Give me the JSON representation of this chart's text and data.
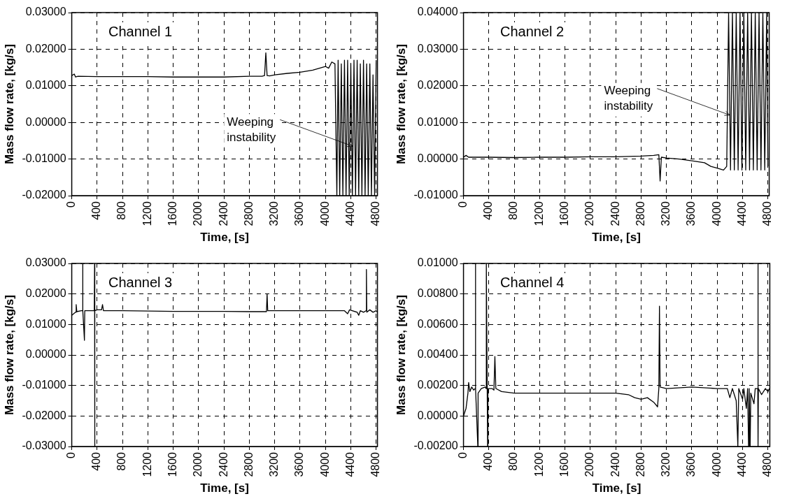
{
  "chart_data": [
    {
      "type": "line",
      "xlabel": "Time, [s]",
      "ylabel": "Mass flow rate, [kg/s]",
      "color": "#000000",
      "grid": true,
      "marker": "none",
      "line_style": "solid",
      "annotations": [
        "Channel 1",
        {
          "text": "Weeping instability",
          "x": 4430,
          "y": -0.0065
        }
      ],
      "xlim": [
        0,
        4820
      ],
      "xticks": [
        0,
        400,
        800,
        1200,
        1600,
        2000,
        2400,
        2800,
        3200,
        3600,
        4000,
        4400,
        4800
      ],
      "ylim": [
        -0.02,
        0.03
      ],
      "yticks": [
        {
          "value": -0.02,
          "label": "-0.02000"
        },
        {
          "value": -0.01,
          "label": "-0.01000"
        },
        {
          "value": 0,
          "label": "0.00000"
        },
        {
          "value": 0.01,
          "label": "0.01000"
        },
        {
          "value": 0.02,
          "label": "0.02000"
        },
        {
          "value": 0.03,
          "label": "0.03000"
        }
      ],
      "x": [
        0,
        40,
        60,
        100,
        400,
        800,
        1200,
        1600,
        2000,
        2400,
        2800,
        3000,
        3040,
        3060,
        3080,
        3120,
        3200,
        3400,
        3600,
        3800,
        4000,
        4050,
        4100,
        4150,
        4180,
        4200,
        4225,
        4250,
        4275,
        4300,
        4325,
        4350,
        4375,
        4400,
        4425,
        4450,
        4475,
        4500,
        4525,
        4550,
        4575,
        4600,
        4625,
        4650,
        4675,
        4700,
        4725,
        4750,
        4775,
        4800
      ],
      "values": [
        0.0128,
        0.0132,
        0.0124,
        0.0126,
        0.0125,
        0.0125,
        0.0125,
        0.0124,
        0.0124,
        0.0124,
        0.0126,
        0.0126,
        0.0128,
        0.019,
        0.0128,
        0.0127,
        0.013,
        0.0134,
        0.0137,
        0.0143,
        0.0153,
        0.0148,
        0.0165,
        0.016,
        -0.02,
        0.017,
        -0.02,
        0.016,
        -0.02,
        0.017,
        -0.02,
        0.017,
        -0.02,
        0.016,
        -0.02,
        0.017,
        -0.02,
        0.017,
        -0.02,
        0.016,
        -0.02,
        0.017,
        -0.02,
        0.016,
        -0.02,
        0.016,
        -0.02,
        0.013,
        -0.02,
        0.017
      ]
    },
    {
      "type": "line",
      "xlabel": "Time, [s]",
      "ylabel": "Mass flow rate, [kg/s]",
      "color": "#000000",
      "grid": true,
      "marker": "none",
      "line_style": "solid",
      "annotations": [
        "Channel 2",
        {
          "text": "Weeping instability",
          "x": 4200,
          "y": 0.012
        }
      ],
      "xlim": [
        0,
        4820
      ],
      "xticks": [
        0,
        400,
        800,
        1200,
        1600,
        2000,
        2400,
        2800,
        3200,
        3600,
        4000,
        4400,
        4800
      ],
      "ylim": [
        -0.01,
        0.04
      ],
      "yticks": [
        {
          "value": -0.01,
          "label": "-0.01000"
        },
        {
          "value": 0,
          "label": "0.00000"
        },
        {
          "value": 0.01,
          "label": "0.01000"
        },
        {
          "value": 0.02,
          "label": "0.02000"
        },
        {
          "value": 0.03,
          "label": "0.03000"
        },
        {
          "value": 0.04,
          "label": "0.04000"
        }
      ],
      "x": [
        0,
        40,
        80,
        400,
        800,
        1200,
        1600,
        2000,
        2400,
        2800,
        3000,
        3080,
        3100,
        3120,
        3200,
        3400,
        3600,
        3800,
        3900,
        4000,
        4100,
        4150,
        4180,
        4210,
        4240,
        4270,
        4300,
        4330,
        4360,
        4390,
        4420,
        4450,
        4480,
        4510,
        4540,
        4570,
        4600,
        4630,
        4660,
        4690,
        4720,
        4750,
        4780,
        4800
      ],
      "values": [
        0.0005,
        0.001,
        0.0005,
        0.0005,
        0.0004,
        0.0005,
        0.0005,
        0.0006,
        0.0006,
        0.0008,
        0.001,
        0.0012,
        -0.006,
        0.0005,
        0.0003,
        0,
        -0.0005,
        -0.001,
        -0.002,
        -0.0025,
        -0.003,
        -0.002,
        0.04,
        -0.003,
        0.04,
        -0.003,
        0.04,
        -0.003,
        0.04,
        -0.003,
        0.04,
        -0.003,
        0.04,
        -0.003,
        0.04,
        -0.003,
        0.04,
        -0.003,
        0.04,
        -0.003,
        0.04,
        -0.003,
        0.04,
        -0.002
      ]
    },
    {
      "type": "line",
      "xlabel": "Time, [s]",
      "ylabel": "Mass flow rate, [kg/s]",
      "color": "#000000",
      "grid": true,
      "marker": "none",
      "line_style": "solid",
      "annotations": [
        "Channel 3"
      ],
      "xlim": [
        0,
        4820
      ],
      "xticks": [
        0,
        400,
        800,
        1200,
        1600,
        2000,
        2400,
        2800,
        3200,
        3600,
        4000,
        4400,
        4800
      ],
      "ylim": [
        -0.03,
        0.03
      ],
      "yticks": [
        {
          "value": -0.03,
          "label": "-0.03000"
        },
        {
          "value": -0.02,
          "label": "-0.02000"
        },
        {
          "value": -0.01,
          "label": "-0.01000"
        },
        {
          "value": 0,
          "label": "0.00000"
        },
        {
          "value": 0.01,
          "label": "0.01000"
        },
        {
          "value": 0.02,
          "label": "0.02000"
        },
        {
          "value": 0.03,
          "label": "0.03000"
        }
      ],
      "x": [
        0,
        30,
        60,
        70,
        80,
        150,
        172,
        173,
        175,
        200,
        205,
        300,
        355,
        360,
        362,
        365,
        400,
        470,
        485,
        500,
        800,
        1200,
        1600,
        2000,
        2400,
        2800,
        3000,
        3070,
        3080,
        3090,
        3200,
        3600,
        4000,
        4300,
        4350,
        4380,
        4500,
        4525,
        4550,
        4600,
        4640,
        4646,
        4652,
        4700,
        4750,
        4800,
        4820
      ],
      "values": [
        0.013,
        0.0135,
        0.014,
        0.0165,
        0.0142,
        0.0145,
        0.0145,
        0.03,
        0.0145,
        0.0048,
        0.0145,
        0.0145,
        0.0145,
        0.03,
        -0.03,
        0.0145,
        0.0148,
        0.0148,
        0.0165,
        0.0145,
        0.0145,
        0.0144,
        0.0143,
        0.0143,
        0.0143,
        0.0142,
        0.0142,
        0.0142,
        0.02,
        0.0145,
        0.0145,
        0.0145,
        0.0145,
        0.0145,
        0.0135,
        0.0148,
        0.014,
        0.013,
        0.0145,
        0.014,
        0.0145,
        0.028,
        0.014,
        0.0148,
        0.014,
        0.0145,
        0.014
      ]
    },
    {
      "type": "line",
      "xlabel": "Time, [s]",
      "ylabel": "Mass flow rate, [kg/s]",
      "color": "#000000",
      "grid": true,
      "marker": "none",
      "line_style": "solid",
      "annotations": [
        "Channel 4"
      ],
      "xlim": [
        0,
        4830
      ],
      "xticks": [
        0,
        400,
        800,
        1200,
        1600,
        2000,
        2400,
        2800,
        3200,
        3600,
        4000,
        4400,
        4800
      ],
      "ylim": [
        -0.002,
        0.01
      ],
      "yticks": [
        {
          "value": -0.002,
          "label": "-0.00200"
        },
        {
          "value": 0,
          "label": "0.00000"
        },
        {
          "value": 0.002,
          "label": "0.00200"
        },
        {
          "value": 0.004,
          "label": "0.00400"
        },
        {
          "value": 0.006,
          "label": "0.00600"
        },
        {
          "value": 0.008,
          "label": "0.00800"
        },
        {
          "value": 0.01,
          "label": "0.01000"
        }
      ],
      "x": [
        0,
        40,
        70,
        81,
        100,
        130,
        160,
        185,
        188,
        192,
        226,
        230,
        280,
        340,
        358,
        360,
        380,
        385,
        450,
        480,
        495,
        510,
        600,
        800,
        1200,
        1600,
        2000,
        2400,
        2600,
        2700,
        2800,
        2900,
        3000,
        3060,
        3080,
        3090,
        3100,
        3200,
        3600,
        4000,
        4160,
        4200,
        4240,
        4300,
        4326,
        4340,
        4400,
        4420,
        4460,
        4480,
        4495,
        4505,
        4520,
        4530,
        4580,
        4600,
        4640,
        4643,
        4646,
        4650,
        4700,
        4760,
        4800,
        4825
      ],
      "values": [
        0,
        0.0005,
        0.0015,
        0.0022,
        0.0016,
        0.0019,
        0.0017,
        0.0018,
        0.01,
        0.0018,
        -0.002,
        0.0015,
        0.0018,
        0.0019,
        0.0018,
        0.01,
        -0.002,
        0.0018,
        0.0018,
        0.0017,
        0.0039,
        0.0018,
        0.0016,
        0.0015,
        0.0015,
        0.0015,
        0.0015,
        0.0015,
        0.0014,
        0.0012,
        0.0011,
        0.0012,
        0.0009,
        0.0006,
        0.0018,
        0.0072,
        0.0019,
        0.0018,
        0.0019,
        0.0018,
        0.0018,
        0.0012,
        0.0018,
        0.001,
        -0.002,
        0.0018,
        0.0011,
        0.0018,
        0.0005,
        0.0018,
        -0.002,
        0.0018,
        -0.002,
        0.0015,
        0.0008,
        0.0018,
        0.0018,
        0.01,
        -0.002,
        0.0018,
        0.0014,
        0.0018,
        0.0016,
        0.0018
      ]
    }
  ]
}
